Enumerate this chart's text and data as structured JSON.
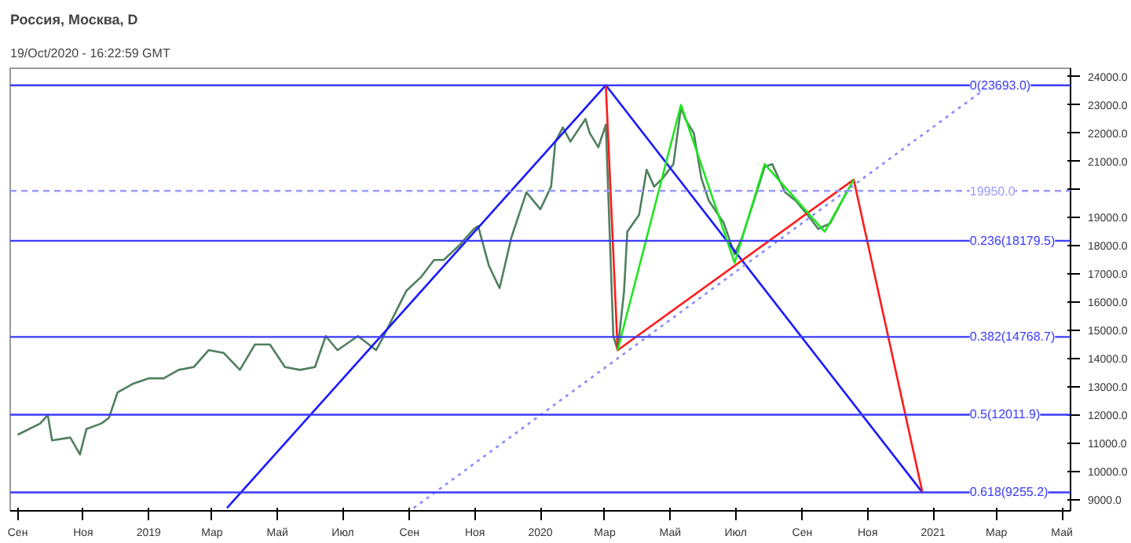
{
  "chart_data": {
    "type": "line",
    "title": "Россия, Москва, D",
    "annotations": [
      "19/Oct/2020 - 16:22:59 GMT"
    ],
    "xlim": [
      "2018-08-25",
      "2021-05-09"
    ],
    "ylim": [
      8600,
      24300
    ],
    "xticks": [
      {
        "value": "2018-09-01",
        "label": "Сен"
      },
      {
        "value": "2018-11-01",
        "label": "Ноя"
      },
      {
        "value": "2019-01-01",
        "label": "2019"
      },
      {
        "value": "2019-03-01",
        "label": "Мар"
      },
      {
        "value": "2019-05-01",
        "label": "Май"
      },
      {
        "value": "2019-07-01",
        "label": "Июл"
      },
      {
        "value": "2019-09-01",
        "label": "Сен"
      },
      {
        "value": "2019-11-01",
        "label": "Ноя"
      },
      {
        "value": "2020-01-01",
        "label": "2020"
      },
      {
        "value": "2020-03-01",
        "label": "Мар"
      },
      {
        "value": "2020-05-01",
        "label": "Май"
      },
      {
        "value": "2020-07-01",
        "label": "Июл"
      },
      {
        "value": "2020-09-01",
        "label": "Сен"
      },
      {
        "value": "2020-11-01",
        "label": "Ноя"
      },
      {
        "value": "2021-01-01",
        "label": "2021"
      },
      {
        "value": "2021-03-01",
        "label": "Мар"
      },
      {
        "value": "2021-05-01",
        "label": "Май"
      }
    ],
    "yticks": [
      {
        "value": 9000,
        "label": "9000.0"
      },
      {
        "value": 10000,
        "label": "10000.0"
      },
      {
        "value": 11000,
        "label": "11000.0"
      },
      {
        "value": 12000,
        "label": "12000.0"
      },
      {
        "value": 13000,
        "label": "13000.0"
      },
      {
        "value": 14000,
        "label": "14000.0"
      },
      {
        "value": 15000,
        "label": "15000.0"
      },
      {
        "value": 16000,
        "label": "16000.0"
      },
      {
        "value": 17000,
        "label": "17000.0"
      },
      {
        "value": 18000,
        "label": "18000.0"
      },
      {
        "value": 19000,
        "label": "19000.0"
      },
      {
        "value": 20000,
        "label": null
      },
      {
        "value": 21000,
        "label": "21000.0"
      },
      {
        "value": 22000,
        "label": "22000.0"
      },
      {
        "value": 23000,
        "label": "23000.0"
      },
      {
        "value": 24000,
        "label": "24000.0"
      }
    ],
    "grid": false,
    "marker": "none",
    "ref_lines": [
      {
        "axis": "y",
        "value": 23693,
        "label": "0(23693.0)",
        "color": "#3a3aff",
        "line_style": "solid"
      },
      {
        "axis": "y",
        "value": 18179.5,
        "label": "0.236(18179.5)",
        "color": "#3a3aff",
        "line_style": "solid"
      },
      {
        "axis": "y",
        "value": 14768.7,
        "label": "0.382(14768.7)",
        "color": "#3a3aff",
        "line_style": "solid"
      },
      {
        "axis": "y",
        "value": 12011.9,
        "label": "0.5(12011.9)",
        "color": "#3a3aff",
        "line_style": "solid"
      },
      {
        "axis": "y",
        "value": 9255.2,
        "label": "0.618(9255.2)",
        "color": "#3a3aff",
        "line_style": "solid"
      },
      {
        "axis": "y",
        "value": 19950,
        "label": "19950.0",
        "color": "#9a9aff",
        "line_style": "dashed"
      }
    ],
    "series": [
      {
        "color": "#4f7f5f",
        "line_style": "solid",
        "x": [
          "2018-09-01",
          "2018-09-22",
          "2018-09-29",
          "2018-10-03",
          "2018-10-20",
          "2018-10-29",
          "2018-11-04",
          "2018-11-18",
          "2018-11-25",
          "2018-12-03",
          "2018-12-17",
          "2019-01-01",
          "2019-01-15",
          "2019-01-29",
          "2019-02-12",
          "2019-02-26",
          "2019-03-12",
          "2019-03-27",
          "2019-04-10",
          "2019-04-24",
          "2019-05-08",
          "2019-05-22",
          "2019-06-05",
          "2019-06-15",
          "2019-06-26",
          "2019-07-15",
          "2019-08-01",
          "2019-08-08",
          "2019-08-29",
          "2019-09-12",
          "2019-09-24",
          "2019-10-03",
          "2019-10-17",
          "2019-10-31",
          "2019-11-04",
          "2019-11-14",
          "2019-11-24",
          "2019-12-05",
          "2019-12-19",
          "2020-01-01",
          "2020-01-11",
          "2020-01-15",
          "2020-01-22",
          "2020-01-29",
          "2020-02-12",
          "2020-02-16",
          "2020-02-24",
          "2020-03-02",
          "2020-03-09",
          "2020-03-13",
          "2020-03-19",
          "2020-03-22",
          "2020-04-02",
          "2020-04-09",
          "2020-04-16",
          "2020-04-24",
          "2020-05-04",
          "2020-05-11",
          "2020-05-15",
          "2020-05-23",
          "2020-05-30",
          "2020-06-06",
          "2020-06-20",
          "2020-06-30",
          "2020-07-07",
          "2020-07-18",
          "2020-07-28",
          "2020-08-04",
          "2020-08-16",
          "2020-08-26",
          "2020-09-06",
          "2020-09-16",
          "2020-09-27",
          "2020-10-04",
          "2020-10-13"
        ],
        "values": [
          11300,
          11700,
          12000,
          11100,
          11200,
          10600,
          11500,
          11700,
          11900,
          12800,
          13100,
          13300,
          13300,
          13600,
          13700,
          14300,
          14200,
          13600,
          14500,
          14500,
          13700,
          13600,
          13700,
          14800,
          14300,
          14800,
          14300,
          14800,
          16400,
          16900,
          17500,
          17500,
          18000,
          18600,
          18700,
          17300,
          16500,
          18300,
          19900,
          19300,
          20100,
          21700,
          22200,
          21700,
          22500,
          22000,
          21500,
          22300,
          14800,
          14300,
          16400,
          18500,
          19100,
          20700,
          20100,
          20400,
          20900,
          22900,
          22500,
          22000,
          20400,
          19600,
          18800,
          17700,
          18300,
          19600,
          20800,
          20900,
          19900,
          19600,
          19100,
          18600,
          18800,
          19300,
          19950
        ]
      },
      {
        "color": "#1a1aff",
        "line_style": "solid",
        "x": [
          "2019-03-15",
          "2020-03-02",
          "2020-12-22"
        ],
        "values": [
          8700,
          23700,
          9250
        ]
      },
      {
        "color": "#ff1a1a",
        "line_style": "solid",
        "x": [
          "2020-03-02",
          "2020-03-13",
          "2020-10-19",
          "2020-12-22"
        ],
        "values": [
          23700,
          14300,
          20350,
          9250
        ]
      },
      {
        "color": "#1ee61e",
        "line_style": "solid",
        "x": [
          "2020-03-13",
          "2020-05-11",
          "2020-06-30",
          "2020-07-28",
          "2020-09-22",
          "2020-10-19"
        ],
        "values": [
          14300,
          23000,
          17400,
          20900,
          18500,
          20350
        ]
      },
      {
        "color": "#8a8aff",
        "line_style": "dotted",
        "x": [
          "2019-09-05",
          "2021-02-23"
        ],
        "values": [
          8700,
          23700
        ]
      }
    ]
  }
}
